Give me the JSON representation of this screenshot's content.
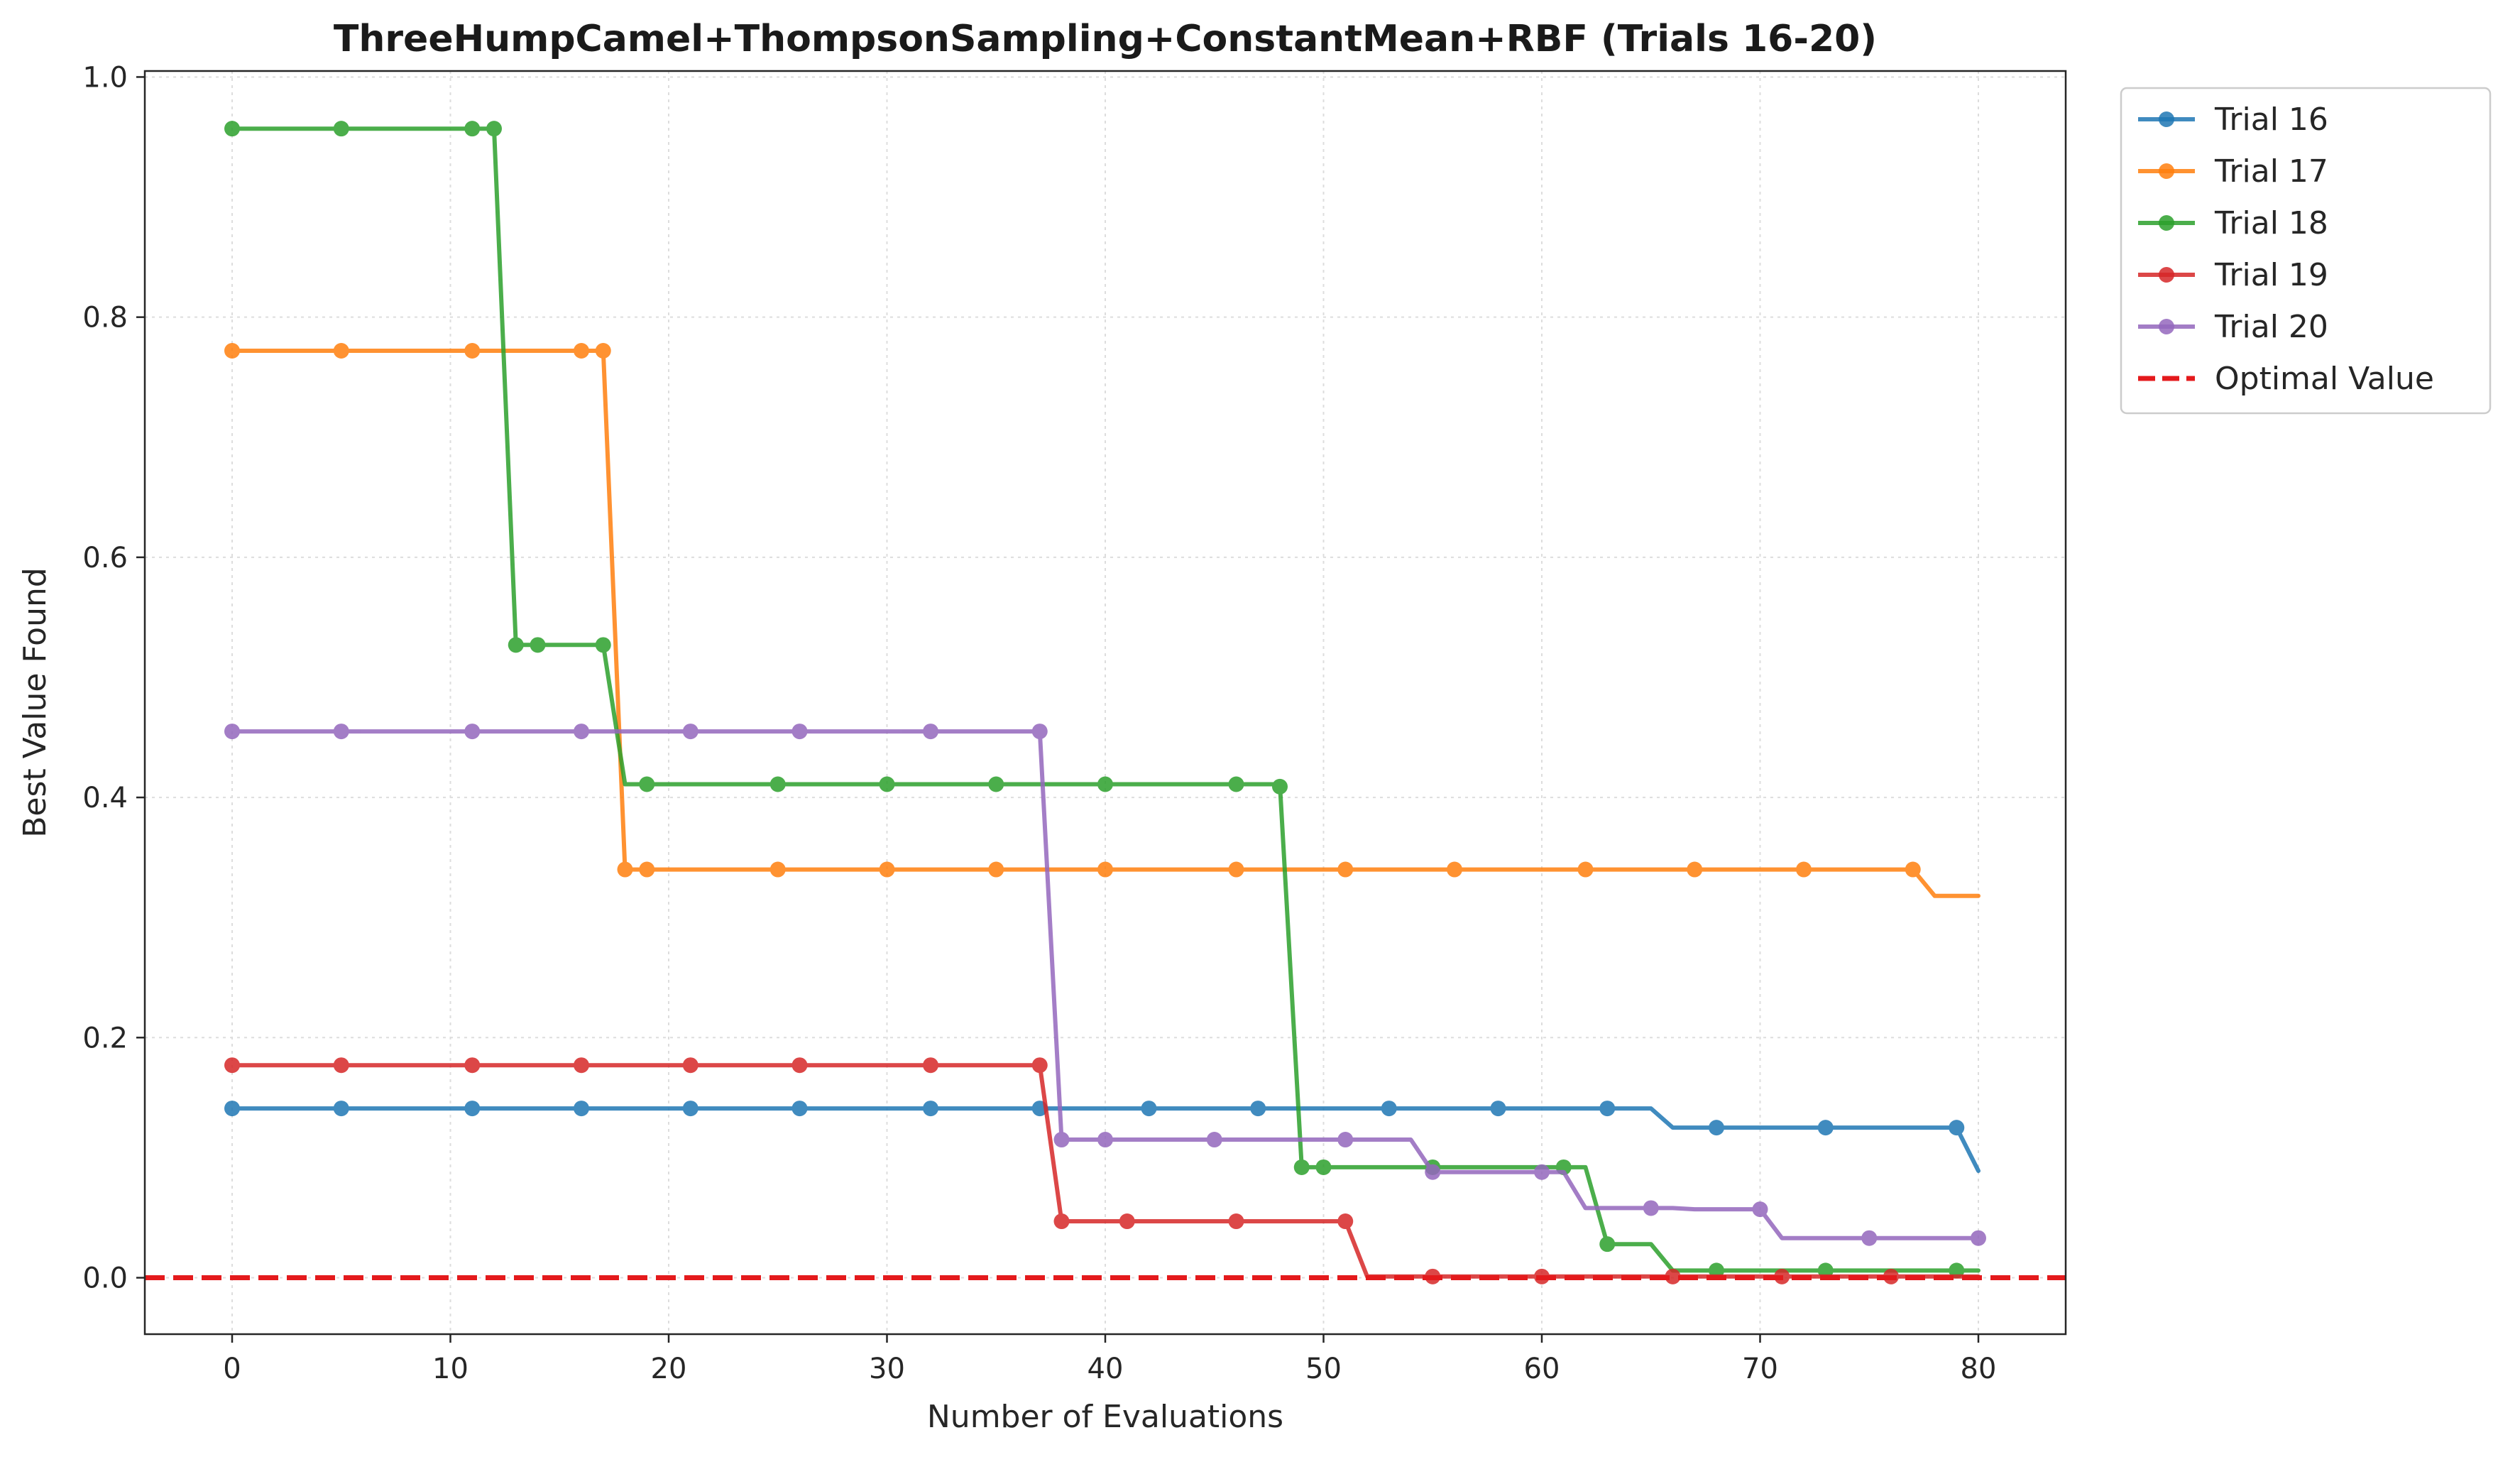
{
  "chart_data": {
    "type": "line",
    "title": "ThreeHumpCamel+ThompsonSampling+ConstantMean+RBF (Trials 16-20)",
    "xlabel": "Number of Evaluations",
    "ylabel": "Best Value Found",
    "xlim": [
      -4,
      84
    ],
    "ylim": [
      -0.047,
      1.005
    ],
    "xticks": [
      0,
      10,
      20,
      30,
      40,
      50,
      60,
      70,
      80
    ],
    "yticks": [
      0.0,
      0.2,
      0.4,
      0.6,
      0.8,
      1.0
    ],
    "xtick_labels": [
      "0",
      "10",
      "20",
      "30",
      "40",
      "50",
      "60",
      "70",
      "80"
    ],
    "ytick_labels": [
      "0.0",
      "0.2",
      "0.4",
      "0.6",
      "0.8",
      "1.0"
    ],
    "grid": true,
    "legend_position": "outside-top-right",
    "series": [
      {
        "name": "Trial 16",
        "color": "#1f77b4",
        "line": [
          [
            0,
            0.141
          ],
          [
            65,
            0.141
          ],
          [
            66,
            0.125
          ],
          [
            79,
            0.125
          ],
          [
            80,
            0.089
          ]
        ],
        "markers": [
          [
            0,
            0.141
          ],
          [
            5,
            0.141
          ],
          [
            11,
            0.141
          ],
          [
            16,
            0.141
          ],
          [
            21,
            0.141
          ],
          [
            26,
            0.141
          ],
          [
            32,
            0.141
          ],
          [
            37,
            0.141
          ],
          [
            42,
            0.141
          ],
          [
            47,
            0.141
          ],
          [
            53,
            0.141
          ],
          [
            58,
            0.141
          ],
          [
            63,
            0.141
          ],
          [
            68,
            0.125
          ],
          [
            73,
            0.125
          ],
          [
            79,
            0.125
          ]
        ]
      },
      {
        "name": "Trial 17",
        "color": "#ff7f0e",
        "line": [
          [
            0,
            0.772
          ],
          [
            17,
            0.772
          ],
          [
            18,
            0.34
          ],
          [
            77,
            0.34
          ],
          [
            78,
            0.318
          ],
          [
            80,
            0.318
          ]
        ],
        "markers": [
          [
            0,
            0.772
          ],
          [
            5,
            0.772
          ],
          [
            11,
            0.772
          ],
          [
            16,
            0.772
          ],
          [
            17,
            0.772
          ],
          [
            18,
            0.34
          ],
          [
            19,
            0.34
          ],
          [
            25,
            0.34
          ],
          [
            30,
            0.34
          ],
          [
            35,
            0.34
          ],
          [
            40,
            0.34
          ],
          [
            46,
            0.34
          ],
          [
            51,
            0.34
          ],
          [
            56,
            0.34
          ],
          [
            62,
            0.34
          ],
          [
            67,
            0.34
          ],
          [
            72,
            0.34
          ],
          [
            77,
            0.34
          ]
        ]
      },
      {
        "name": "Trial 18",
        "color": "#2ca02c",
        "line": [
          [
            0,
            0.957
          ],
          [
            12,
            0.957
          ],
          [
            13,
            0.527
          ],
          [
            17,
            0.527
          ],
          [
            18,
            0.411
          ],
          [
            48,
            0.411
          ],
          [
            49,
            0.092
          ],
          [
            61,
            0.092
          ],
          [
            62,
            0.092
          ],
          [
            63,
            0.028
          ],
          [
            65,
            0.028
          ],
          [
            66,
            0.006
          ],
          [
            80,
            0.006
          ]
        ],
        "markers": [
          [
            0,
            0.957
          ],
          [
            5,
            0.957
          ],
          [
            11,
            0.957
          ],
          [
            12,
            0.957
          ],
          [
            13,
            0.527
          ],
          [
            14,
            0.527
          ],
          [
            17,
            0.527
          ],
          [
            19,
            0.411
          ],
          [
            25,
            0.411
          ],
          [
            30,
            0.411
          ],
          [
            35,
            0.411
          ],
          [
            40,
            0.411
          ],
          [
            46,
            0.411
          ],
          [
            48,
            0.409
          ],
          [
            49,
            0.092
          ],
          [
            50,
            0.092
          ],
          [
            55,
            0.092
          ],
          [
            61,
            0.092
          ],
          [
            63,
            0.028
          ],
          [
            68,
            0.006
          ],
          [
            73,
            0.006
          ],
          [
            79,
            0.006
          ]
        ]
      },
      {
        "name": "Trial 19",
        "color": "#d62728",
        "line": [
          [
            0,
            0.177
          ],
          [
            37,
            0.177
          ],
          [
            38,
            0.047
          ],
          [
            51,
            0.047
          ],
          [
            52,
            0.001
          ],
          [
            80,
            0.001
          ]
        ],
        "markers": [
          [
            0,
            0.177
          ],
          [
            5,
            0.177
          ],
          [
            11,
            0.177
          ],
          [
            16,
            0.177
          ],
          [
            21,
            0.177
          ],
          [
            26,
            0.177
          ],
          [
            32,
            0.177
          ],
          [
            37,
            0.177
          ],
          [
            38,
            0.047
          ],
          [
            41,
            0.047
          ],
          [
            46,
            0.047
          ],
          [
            51,
            0.047
          ],
          [
            55,
            0.001
          ],
          [
            60,
            0.001
          ],
          [
            66,
            0.001
          ],
          [
            71,
            0.001
          ],
          [
            76,
            0.001
          ]
        ]
      },
      {
        "name": "Trial 20",
        "color": "#9467bd",
        "line": [
          [
            0,
            0.455
          ],
          [
            37,
            0.455
          ],
          [
            38,
            0.115
          ],
          [
            54,
            0.115
          ],
          [
            55,
            0.088
          ],
          [
            61,
            0.088
          ],
          [
            62,
            0.058
          ],
          [
            66,
            0.058
          ],
          [
            67,
            0.057
          ],
          [
            70,
            0.057
          ],
          [
            71,
            0.033
          ],
          [
            80,
            0.033
          ]
        ],
        "markers": [
          [
            0,
            0.455
          ],
          [
            5,
            0.455
          ],
          [
            11,
            0.455
          ],
          [
            16,
            0.455
          ],
          [
            21,
            0.455
          ],
          [
            26,
            0.455
          ],
          [
            32,
            0.455
          ],
          [
            37,
            0.455
          ],
          [
            38,
            0.115
          ],
          [
            40,
            0.115
          ],
          [
            45,
            0.115
          ],
          [
            51,
            0.115
          ],
          [
            55,
            0.088
          ],
          [
            60,
            0.088
          ],
          [
            65,
            0.058
          ],
          [
            70,
            0.057
          ],
          [
            75,
            0.033
          ],
          [
            80,
            0.033
          ]
        ]
      },
      {
        "name": "Optimal Value",
        "color": "#e41a1c",
        "style": "dashed",
        "y": 0.0
      }
    ]
  }
}
